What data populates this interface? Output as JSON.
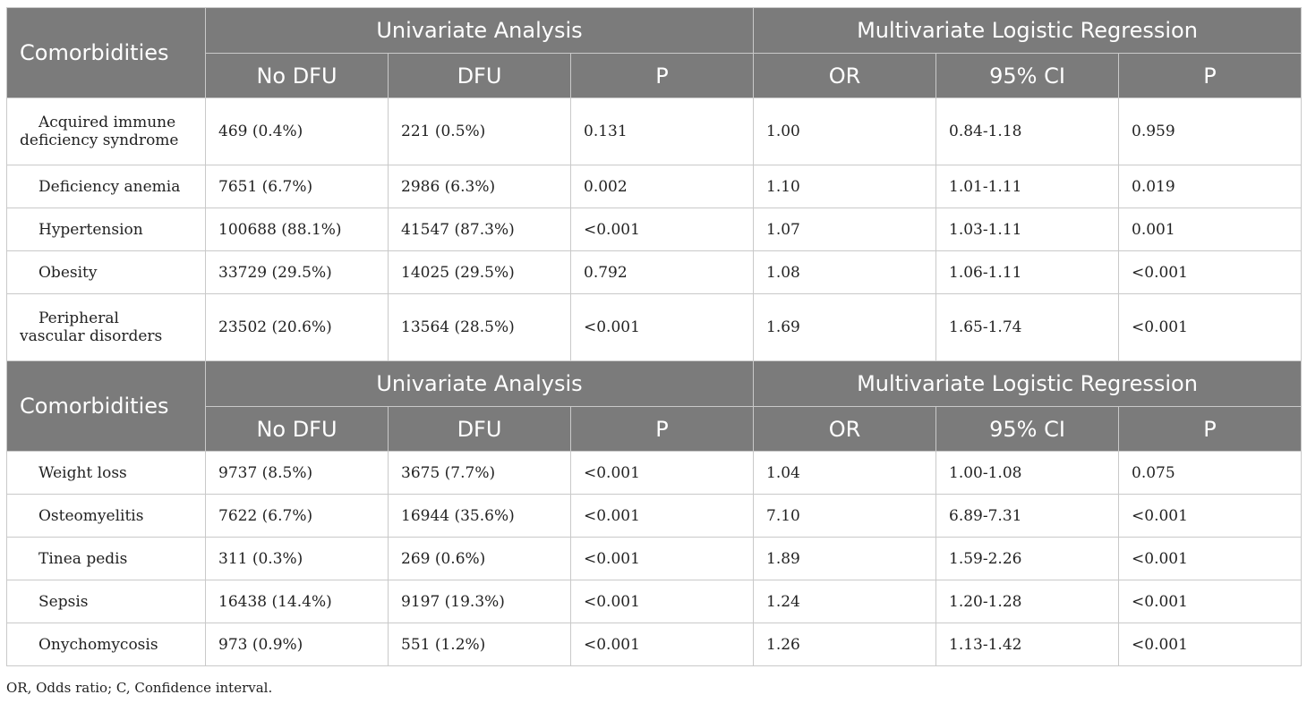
{
  "table1": {
    "header": {
      "stub": "Comorbidities",
      "group_univariate": "Univariate Analysis",
      "group_multivariate": "Multivariate Logistic Regression",
      "columns": [
        "No DFU",
        "DFU",
        "P",
        "OR",
        "95% CI",
        "P"
      ]
    },
    "rows": [
      {
        "name_line1": "Acquired immune",
        "name_line2": "deficiency syndrome",
        "cells": [
          "469 (0.4%)",
          "221 (0.5%)",
          "0.131",
          "1.00",
          "0.84-1.18",
          "0.959"
        ]
      },
      {
        "name": "Deficiency anemia",
        "cells": [
          "7651 (6.7%)",
          "2986 (6.3%)",
          "0.002",
          "1.10",
          "1.01-1.11",
          "0.019"
        ]
      },
      {
        "name": "Hypertension",
        "cells": [
          "100688 (88.1%)",
          "41547 (87.3%)",
          "<0.001",
          "1.07",
          "1.03-1.11",
          "0.001"
        ]
      },
      {
        "name": "Obesity",
        "cells": [
          "33729 (29.5%)",
          "14025 (29.5%)",
          "0.792",
          "1.08",
          "1.06-1.11",
          "<0.001"
        ]
      },
      {
        "name_line1": "Peripheral",
        "name_line2": "vascular disorders",
        "cells": [
          "23502 (20.6%)",
          "13564 (28.5%)",
          "<0.001",
          "1.69",
          "1.65-1.74",
          "<0.001"
        ]
      }
    ]
  },
  "table2": {
    "header": {
      "stub": "Comorbidities",
      "group_univariate": "Univariate Analysis",
      "group_multivariate": "Multivariate Logistic Regression",
      "columns": [
        "No DFU",
        "DFU",
        "P",
        "OR",
        "95% CI",
        "P"
      ]
    },
    "rows": [
      {
        "name": "Weight loss",
        "cells": [
          "9737 (8.5%)",
          "3675 (7.7%)",
          "<0.001",
          "1.04",
          "1.00-1.08",
          "0.075"
        ]
      },
      {
        "name": "Osteomyelitis",
        "cells": [
          "7622 (6.7%)",
          "16944 (35.6%)",
          "<0.001",
          "7.10",
          "6.89-7.31",
          "<0.001"
        ]
      },
      {
        "name": "Tinea pedis",
        "cells": [
          "311 (0.3%)",
          "269 (0.6%)",
          "<0.001",
          "1.89",
          "1.59-2.26",
          "<0.001"
        ]
      },
      {
        "name": "Sepsis",
        "cells": [
          "16438 (14.4%)",
          "9197 (19.3%)",
          "<0.001",
          "1.24",
          "1.20-1.28",
          "<0.001"
        ]
      },
      {
        "name": "Onychomycosis",
        "cells": [
          "973 (0.9%)",
          "551 (1.2%)",
          "<0.001",
          "1.26",
          "1.13-1.42",
          "<0.001"
        ]
      }
    ]
  },
  "footnote": "OR, Odds ratio; C, Confidence interval.",
  "colors": {
    "header_bg": "#7b7b7b",
    "header_text": "#ffffff",
    "border": "#c9c9c9"
  }
}
